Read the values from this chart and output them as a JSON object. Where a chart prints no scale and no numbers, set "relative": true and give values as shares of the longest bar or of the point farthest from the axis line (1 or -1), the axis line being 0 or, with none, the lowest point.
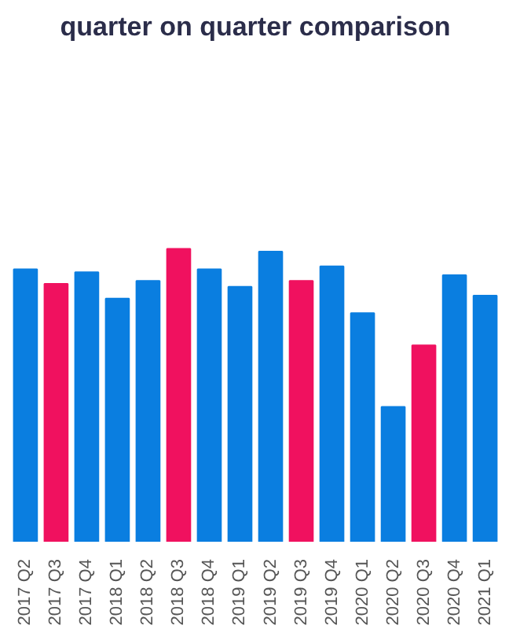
{
  "chart_data": {
    "type": "bar",
    "title": "quarter on quarter comparison",
    "relative": true,
    "categories": [
      "2017 Q2",
      "2017 Q3",
      "2017 Q4",
      "2018 Q1",
      "2018 Q2",
      "2018 Q3",
      "2018 Q4",
      "2019 Q1",
      "2019 Q2",
      "2019 Q3",
      "2019 Q4",
      "2020 Q1",
      "2020 Q2",
      "2020 Q3",
      "2020 Q4",
      "2021 Q1"
    ],
    "values": [
      0.93,
      0.88,
      0.92,
      0.83,
      0.89,
      1,
      0.93,
      0.87,
      0.99,
      0.89,
      0.94,
      0.78,
      0.46,
      0.67,
      0.91,
      0.84
    ],
    "colors": [
      "#0a7ee0",
      "#f0115f",
      "#0a7ee0",
      "#0a7ee0",
      "#0a7ee0",
      "#f0115f",
      "#0a7ee0",
      "#0a7ee0",
      "#0a7ee0",
      "#f0115f",
      "#0a7ee0",
      "#0a7ee0",
      "#0a7ee0",
      "#f0115f",
      "#0a7ee0",
      "#0a7ee0"
    ]
  }
}
